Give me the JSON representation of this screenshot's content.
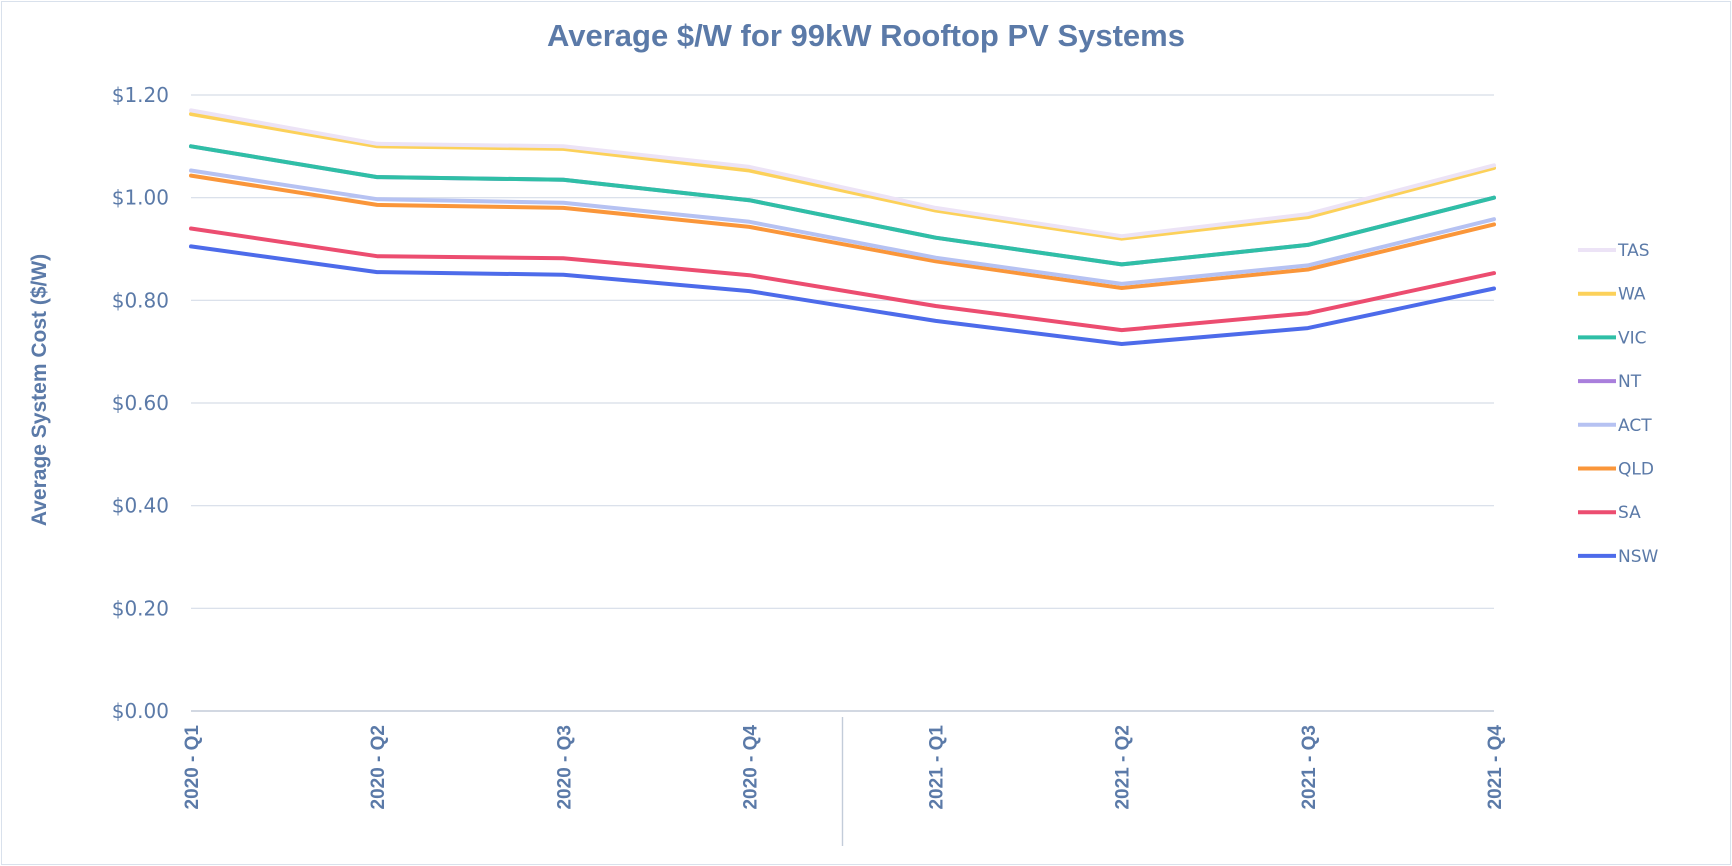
{
  "chart_data": {
    "type": "line",
    "title": "Average $/W for 99kW Rooftop PV Systems",
    "xlabel": "",
    "ylabel": "Average System Cost ($/W)",
    "categories": [
      "2020 - Q1",
      "2020 - Q2",
      "2020 - Q3",
      "2020 - Q4",
      "2021 - Q1",
      "2021 - Q2",
      "2021 - Q3",
      "2021 - Q4"
    ],
    "ylim": [
      0,
      1.2
    ],
    "yticks": [
      0,
      0.2,
      0.4,
      0.6,
      0.8,
      1.0,
      1.2
    ],
    "ytick_labels": [
      "$0.00",
      "$0.20",
      "$0.40",
      "$0.60",
      "$0.80",
      "$1.00",
      "$1.20"
    ],
    "grid": true,
    "legend_position": "right",
    "series": [
      {
        "name": "TAS",
        "color": "#ece3f6",
        "values": [
          1.17,
          1.105,
          1.1,
          1.06,
          0.98,
          0.925,
          0.968,
          1.063
        ]
      },
      {
        "name": "WA",
        "color": "#fcd15a",
        "values": [
          1.163,
          1.1,
          1.095,
          1.053,
          0.975,
          0.92,
          0.962,
          1.058
        ]
      },
      {
        "name": "VIC",
        "color": "#2fbfa6",
        "values": [
          1.1,
          1.04,
          1.035,
          0.995,
          0.922,
          0.87,
          0.908,
          1.0
        ]
      },
      {
        "name": "NT",
        "color": "#a97fdc",
        "values": [
          1.1,
          1.04,
          1.035,
          0.995,
          0.922,
          0.87,
          0.908,
          1.0
        ]
      },
      {
        "name": "ACT",
        "color": "#b6c2f2",
        "values": [
          1.053,
          0.997,
          0.99,
          0.953,
          0.883,
          0.832,
          0.868,
          0.958
        ]
      },
      {
        "name": "QLD",
        "color": "#fa963a",
        "values": [
          1.043,
          0.986,
          0.98,
          0.943,
          0.876,
          0.824,
          0.86,
          0.948
        ]
      },
      {
        "name": "SA",
        "color": "#ec4d70",
        "values": [
          0.94,
          0.886,
          0.882,
          0.849,
          0.789,
          0.742,
          0.775,
          0.853
        ]
      },
      {
        "name": "NSW",
        "color": "#4d6bea",
        "values": [
          0.905,
          0.855,
          0.85,
          0.818,
          0.76,
          0.715,
          0.746,
          0.823
        ]
      }
    ]
  }
}
